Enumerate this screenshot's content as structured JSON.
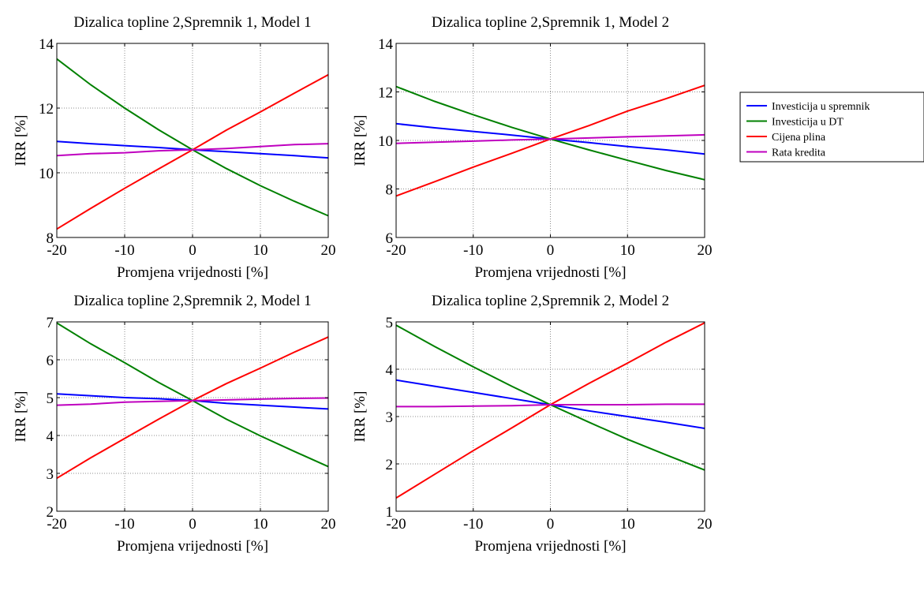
{
  "chart_data": [
    {
      "type": "line",
      "title": "Dizalica topline 2,Spremnik 1, Model 1",
      "xlabel": "Promjena vrijednosti [%]",
      "ylabel": "IRR [%]",
      "xlim": [
        -20,
        20
      ],
      "ylim": [
        8,
        14
      ],
      "xticks": [
        -20,
        -10,
        0,
        10,
        20
      ],
      "yticks": [
        8,
        10,
        12,
        14
      ],
      "grid": true,
      "x": [
        -20,
        -15,
        -10,
        -5,
        0,
        5,
        10,
        15,
        20
      ],
      "series": [
        {
          "name": "Investicija u spremnik",
          "color": "#0000ff",
          "values": [
            10.97,
            10.9,
            10.84,
            10.78,
            10.71,
            10.65,
            10.59,
            10.53,
            10.46
          ]
        },
        {
          "name": "Investicija u DT",
          "color": "#008000",
          "values": [
            13.52,
            12.72,
            12.0,
            11.33,
            10.71,
            10.13,
            9.6,
            9.12,
            8.67
          ]
        },
        {
          "name": "Cijena plina",
          "color": "#ff0000",
          "values": [
            8.26,
            8.9,
            9.52,
            10.12,
            10.71,
            11.32,
            11.88,
            12.46,
            13.03
          ]
        },
        {
          "name": "Rata kredita",
          "color": "#bf00bf",
          "values": [
            10.53,
            10.59,
            10.62,
            10.68,
            10.71,
            10.75,
            10.81,
            10.87,
            10.9
          ]
        }
      ]
    },
    {
      "type": "line",
      "title": "Dizalica topline 2,Spremnik 1, Model 2",
      "xlabel": "Promjena vrijednosti [%]",
      "ylabel": "IRR [%]",
      "xlim": [
        -20,
        20
      ],
      "ylim": [
        6,
        14
      ],
      "xticks": [
        -20,
        -10,
        0,
        10,
        20
      ],
      "yticks": [
        6,
        8,
        10,
        12,
        14
      ],
      "grid": true,
      "x": [
        -20,
        -15,
        -10,
        -5,
        0,
        5,
        10,
        15,
        20
      ],
      "series": [
        {
          "name": "Investicija u spremnik",
          "color": "#0000ff",
          "values": [
            10.69,
            10.52,
            10.37,
            10.22,
            10.06,
            9.91,
            9.75,
            9.61,
            9.44
          ]
        },
        {
          "name": "Investicija u DT",
          "color": "#008000",
          "values": [
            12.22,
            11.61,
            11.06,
            10.54,
            10.06,
            9.61,
            9.18,
            8.76,
            8.38
          ]
        },
        {
          "name": "Cijena plina",
          "color": "#ff0000",
          "values": [
            7.71,
            8.3,
            8.9,
            9.47,
            10.06,
            10.61,
            11.21,
            11.72,
            12.27
          ]
        },
        {
          "name": "Rata kredita",
          "color": "#bf00bf",
          "values": [
            9.88,
            9.93,
            9.97,
            10.02,
            10.06,
            10.1,
            10.15,
            10.19,
            10.23
          ]
        }
      ]
    },
    {
      "type": "line",
      "title": "Dizalica topline 2,Spremnik 2, Model 1",
      "xlabel": "Promjena vrijednosti [%]",
      "ylabel": "IRR [%]",
      "xlim": [
        -20,
        20
      ],
      "ylim": [
        2,
        7
      ],
      "xticks": [
        -20,
        -10,
        0,
        10,
        20
      ],
      "yticks": [
        2,
        3,
        4,
        5,
        6,
        7
      ],
      "grid": true,
      "x": [
        -20,
        -15,
        -10,
        -5,
        0,
        5,
        10,
        15,
        20
      ],
      "series": [
        {
          "name": "Investicija u spremnik",
          "color": "#0000ff",
          "values": [
            5.1,
            5.05,
            5.0,
            4.97,
            4.92,
            4.85,
            4.8,
            4.75,
            4.7
          ]
        },
        {
          "name": "Investicija u DT",
          "color": "#008000",
          "values": [
            6.97,
            6.42,
            5.92,
            5.4,
            4.92,
            4.43,
            3.99,
            3.58,
            3.18
          ]
        },
        {
          "name": "Cijena plina",
          "color": "#ff0000",
          "values": [
            2.87,
            3.41,
            3.92,
            4.43,
            4.92,
            5.37,
            5.78,
            6.2,
            6.6
          ]
        },
        {
          "name": "Rata kredita",
          "color": "#bf00bf",
          "values": [
            4.8,
            4.83,
            4.88,
            4.9,
            4.92,
            4.94,
            4.96,
            4.98,
            4.99
          ]
        }
      ]
    },
    {
      "type": "line",
      "title": "Dizalica topline 2,Spremnik 2, Model 2",
      "xlabel": "Promjena vrijednosti [%]",
      "ylabel": "IRR [%]",
      "xlim": [
        -20,
        20
      ],
      "ylim": [
        1,
        5
      ],
      "xticks": [
        -20,
        -10,
        0,
        10,
        20
      ],
      "yticks": [
        1,
        2,
        3,
        4,
        5
      ],
      "grid": true,
      "x": [
        -20,
        -15,
        -10,
        -5,
        0,
        5,
        10,
        15,
        20
      ],
      "series": [
        {
          "name": "Investicija u spremnik",
          "color": "#0000ff",
          "values": [
            3.77,
            3.64,
            3.51,
            3.38,
            3.25,
            3.12,
            3.0,
            2.88,
            2.75
          ]
        },
        {
          "name": "Investicija u DT",
          "color": "#008000",
          "values": [
            4.93,
            4.48,
            4.05,
            3.64,
            3.25,
            2.88,
            2.52,
            2.19,
            1.87
          ]
        },
        {
          "name": "Cijena plina",
          "color": "#ff0000",
          "values": [
            1.28,
            1.78,
            2.28,
            2.76,
            3.25,
            3.7,
            4.13,
            4.57,
            4.98
          ]
        },
        {
          "name": "Rata kredita",
          "color": "#bf00bf",
          "values": [
            3.21,
            3.21,
            3.22,
            3.23,
            3.25,
            3.25,
            3.25,
            3.26,
            3.26
          ]
        }
      ]
    }
  ],
  "legend": {
    "placement": "right",
    "entries": [
      {
        "label": "Investicija u spremnik",
        "color": "#0000ff"
      },
      {
        "label": "Investicija u DT",
        "color": "#008000"
      },
      {
        "label": "Cijena plina",
        "color": "#ff0000"
      },
      {
        "label": "Rata kredita",
        "color": "#bf00bf"
      }
    ]
  }
}
